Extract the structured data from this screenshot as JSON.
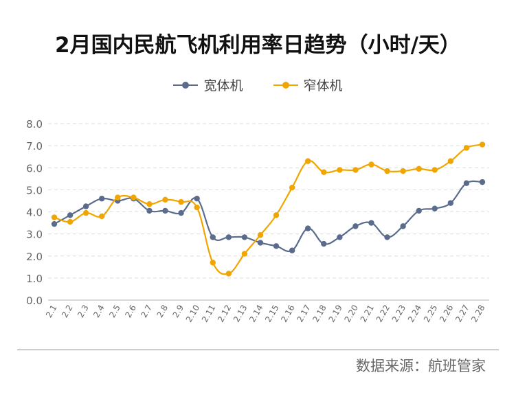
{
  "colors": {
    "wide": "#5a6b8c",
    "narrow": "#f0a500",
    "grid": "#dcdcdc",
    "axis": "#bfbfbf",
    "tick_text": "#666666"
  },
  "legend": {
    "wide_label": "宽体机",
    "narrow_label": "窄体机"
  },
  "source": "数据来源：航班管家",
  "chart_data": {
    "type": "line",
    "title": "2月国内民航飞机利用率日趋势（小时/天）",
    "xlabel": "",
    "ylabel": "",
    "ylim": [
      0,
      8
    ],
    "yticks": [
      "0.0",
      "1.0",
      "2.0",
      "3.0",
      "4.0",
      "5.0",
      "6.0",
      "7.0",
      "8.0"
    ],
    "grid": true,
    "legend_position": "top",
    "categories": [
      "2.1",
      "2.2",
      "2.3",
      "2.4",
      "2.5",
      "2.6",
      "2.7",
      "2.8",
      "2.9",
      "2.10",
      "2.11",
      "2.12",
      "2.13",
      "2.14",
      "2.15",
      "2.16",
      "2.17",
      "2.18",
      "2.19",
      "2.20",
      "2.21",
      "2.22",
      "2.23",
      "2.24",
      "2.25",
      "2.26",
      "2.27",
      "2.28"
    ],
    "series": [
      {
        "name": "宽体机",
        "values": [
          3.45,
          3.85,
          4.25,
          4.6,
          4.5,
          4.6,
          4.05,
          4.05,
          3.95,
          4.6,
          2.85,
          2.85,
          2.85,
          2.6,
          2.45,
          2.25,
          3.25,
          2.55,
          2.85,
          3.35,
          3.5,
          2.85,
          3.35,
          4.05,
          4.15,
          4.4,
          5.3,
          5.35
        ]
      },
      {
        "name": "窄体机",
        "values": [
          3.75,
          3.55,
          3.95,
          3.8,
          4.65,
          4.65,
          4.35,
          4.55,
          4.45,
          4.2,
          1.7,
          1.2,
          2.1,
          2.95,
          3.85,
          5.1,
          6.3,
          5.8,
          5.9,
          5.9,
          6.15,
          5.85,
          5.85,
          5.95,
          5.9,
          6.3,
          6.9,
          7.05
        ]
      }
    ]
  }
}
